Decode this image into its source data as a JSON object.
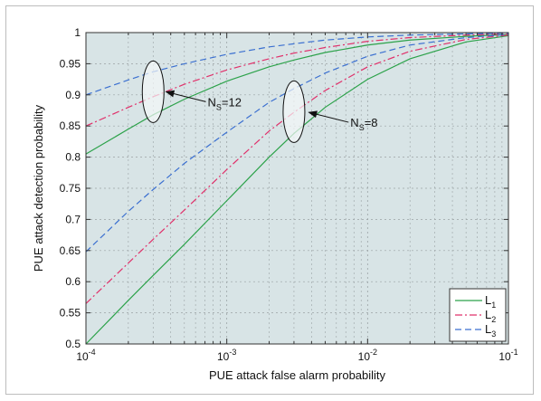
{
  "chart_data": {
    "type": "line",
    "xlabel": "PUE attack false alarm probability",
    "ylabel": "PUE attack detection probability",
    "xscale": "log",
    "xlim": [
      0.0001,
      0.1
    ],
    "ylim": [
      0.5,
      1.0
    ],
    "x_ticks": [
      {
        "value": 0.0001,
        "base": "10",
        "exp": "-4"
      },
      {
        "value": 0.001,
        "base": "10",
        "exp": "-3"
      },
      {
        "value": 0.01,
        "base": "10",
        "exp": "-2"
      },
      {
        "value": 0.1,
        "base": "10",
        "exp": "-1"
      }
    ],
    "y_ticks": [
      {
        "value": 0.5,
        "label": "0.5"
      },
      {
        "value": 0.55,
        "label": "0.55"
      },
      {
        "value": 0.6,
        "label": "0.6"
      },
      {
        "value": 0.65,
        "label": "0.65"
      },
      {
        "value": 0.7,
        "label": "0.7"
      },
      {
        "value": 0.75,
        "label": "0.75"
      },
      {
        "value": 0.8,
        "label": "0.8"
      },
      {
        "value": 0.85,
        "label": "0.85"
      },
      {
        "value": 0.9,
        "label": "0.9"
      },
      {
        "value": 0.95,
        "label": "0.95"
      },
      {
        "value": 1.0,
        "label": "1"
      }
    ],
    "grid": true,
    "legend": {
      "placement": "bottom-right",
      "entries": [
        {
          "base": "L",
          "sub": "1",
          "color": "#2ca24a",
          "dash": "solid"
        },
        {
          "base": "L",
          "sub": "2",
          "color": "#e0306a",
          "dash": "dashdot"
        },
        {
          "base": "L",
          "sub": "3",
          "color": "#3a6fd0",
          "dash": "dashed"
        }
      ]
    },
    "annotations": [
      {
        "base": "N",
        "sub": "S",
        "value_text": "=12",
        "ellipse_x": 0.0003,
        "ellipse_y": 0.905,
        "target_x": 0.00031,
        "target_y": 0.905
      },
      {
        "base": "N",
        "sub": "S",
        "value_text": "=8",
        "ellipse_x": 0.003,
        "ellipse_y": 0.873,
        "target_x": 0.0032,
        "target_y": 0.872
      }
    ],
    "series": [
      {
        "group": "=12",
        "legend": 0,
        "color": "#2ca24a",
        "dash": "solid",
        "x": [
          0.0001,
          0.0002,
          0.0003,
          0.0005,
          0.001,
          0.002,
          0.003,
          0.005,
          0.01,
          0.02,
          0.05,
          0.1
        ],
        "y": [
          0.805,
          0.845,
          0.868,
          0.893,
          0.922,
          0.945,
          0.956,
          0.968,
          0.98,
          0.988,
          0.994,
          0.997
        ]
      },
      {
        "group": "=12",
        "legend": 1,
        "color": "#e0306a",
        "dash": "dashdot",
        "x": [
          0.0001,
          0.0002,
          0.0003,
          0.0005,
          0.001,
          0.002,
          0.003,
          0.005,
          0.01,
          0.02,
          0.05,
          0.1
        ],
        "y": [
          0.85,
          0.88,
          0.897,
          0.917,
          0.94,
          0.958,
          0.967,
          0.976,
          0.986,
          0.992,
          0.996,
          0.998
        ]
      },
      {
        "group": "=12",
        "legend": 2,
        "color": "#3a6fd0",
        "dash": "dashed",
        "x": [
          0.0001,
          0.0002,
          0.0003,
          0.0005,
          0.001,
          0.002,
          0.003,
          0.005,
          0.01,
          0.02,
          0.05,
          0.1
        ],
        "y": [
          0.9,
          0.924,
          0.937,
          0.95,
          0.965,
          0.977,
          0.982,
          0.988,
          0.993,
          0.996,
          0.998,
          0.999
        ]
      },
      {
        "group": "=8",
        "legend": 0,
        "color": "#2ca24a",
        "dash": "solid",
        "x": [
          0.0001,
          0.0002,
          0.0003,
          0.0005,
          0.001,
          0.002,
          0.003,
          0.005,
          0.01,
          0.02,
          0.05,
          0.1
        ],
        "y": [
          0.5,
          0.57,
          0.61,
          0.66,
          0.73,
          0.8,
          0.838,
          0.88,
          0.925,
          0.958,
          0.985,
          0.995
        ]
      },
      {
        "group": "=8",
        "legend": 1,
        "color": "#e0306a",
        "dash": "dashdot",
        "x": [
          0.0001,
          0.0002,
          0.0003,
          0.0005,
          0.001,
          0.002,
          0.003,
          0.005,
          0.01,
          0.02,
          0.05,
          0.1
        ],
        "y": [
          0.565,
          0.63,
          0.668,
          0.715,
          0.78,
          0.842,
          0.872,
          0.907,
          0.945,
          0.97,
          0.989,
          0.996
        ]
      },
      {
        "group": "=8",
        "legend": 2,
        "color": "#3a6fd0",
        "dash": "dashed",
        "x": [
          0.0001,
          0.0002,
          0.0003,
          0.0005,
          0.001,
          0.002,
          0.003,
          0.005,
          0.01,
          0.02,
          0.05,
          0.1
        ],
        "y": [
          0.648,
          0.713,
          0.748,
          0.79,
          0.84,
          0.888,
          0.91,
          0.935,
          0.962,
          0.98,
          0.992,
          0.997
        ]
      }
    ],
    "colors": {
      "plot_background": "#d8e4e6",
      "grid": "#9aa2a4",
      "axes": "#333333",
      "legend_background": "#ffffff",
      "ellipse_fill": "#f5f8f8"
    }
  }
}
